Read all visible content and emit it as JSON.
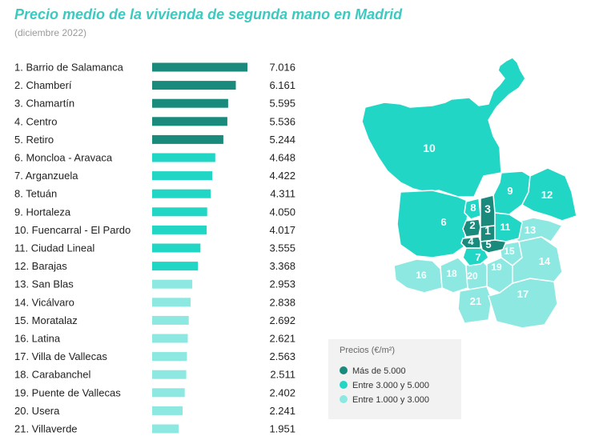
{
  "colors": {
    "dark": "#1a8a7c",
    "mid": "#22d6c6",
    "light": "#8de8e2",
    "title": "#3cc9c0"
  },
  "header": {
    "title": "Precio medio de la vivienda de segunda mano en Madrid",
    "subtitle": "(diciembre 2022)"
  },
  "chart_data": {
    "type": "bar",
    "orientation": "horizontal",
    "title": "Precio medio de la vivienda de segunda mano en Madrid",
    "subtitle": "(diciembre 2022)",
    "unit": "€/m²",
    "xlim": [
      0,
      7016
    ],
    "categories": [
      "1. Barrio de Salamanca",
      "2. Chamberí",
      "3. Chamartín",
      "4. Centro",
      "5. Retiro",
      "6. Moncloa - Aravaca",
      "7. Arganzuela",
      "8. Tetuán",
      "9. Hortaleza",
      "10. Fuencarral - El Pardo",
      "11. Ciudad Lineal",
      "12. Barajas",
      "13. San Blas",
      "14. Vicálvaro",
      "15. Moratalaz",
      "16. Latina",
      "17. Villa de Vallecas",
      "18. Carabanchel",
      "19. Puente de Vallecas",
      "20. Usera",
      "21. Villaverde"
    ],
    "values": [
      7016,
      6161,
      5595,
      5536,
      5244,
      4648,
      4422,
      4311,
      4050,
      4017,
      3555,
      3368,
      2953,
      2838,
      2692,
      2621,
      2563,
      2511,
      2402,
      2241,
      1951
    ],
    "value_labels": [
      "7.016",
      "6.161",
      "5.595",
      "5.536",
      "5.244",
      "4.648",
      "4.422",
      "4.311",
      "4.050",
      "4.017",
      "3.555",
      "3.368",
      "2.953",
      "2.838",
      "2.692",
      "2.621",
      "2.563",
      "2.511",
      "2.402",
      "2.241",
      "1.951"
    ],
    "tiers": [
      "dark",
      "dark",
      "dark",
      "dark",
      "dark",
      "mid",
      "mid",
      "mid",
      "mid",
      "mid",
      "mid",
      "mid",
      "light",
      "light",
      "light",
      "light",
      "light",
      "light",
      "light",
      "light",
      "light"
    ]
  },
  "map": {
    "labels": [
      "1",
      "2",
      "3",
      "4",
      "5",
      "6",
      "7",
      "8",
      "9",
      "10",
      "11",
      "12",
      "13",
      "14",
      "15",
      "16",
      "17",
      "18",
      "19",
      "20",
      "21"
    ]
  },
  "legend": {
    "title": "Precios (€/m²)",
    "items": [
      {
        "label": "Más de 5.000",
        "tier": "dark"
      },
      {
        "label": "Entre 3.000 y 5.000",
        "tier": "mid"
      },
      {
        "label": "Entre 1.000 y 3.000",
        "tier": "light"
      }
    ]
  }
}
